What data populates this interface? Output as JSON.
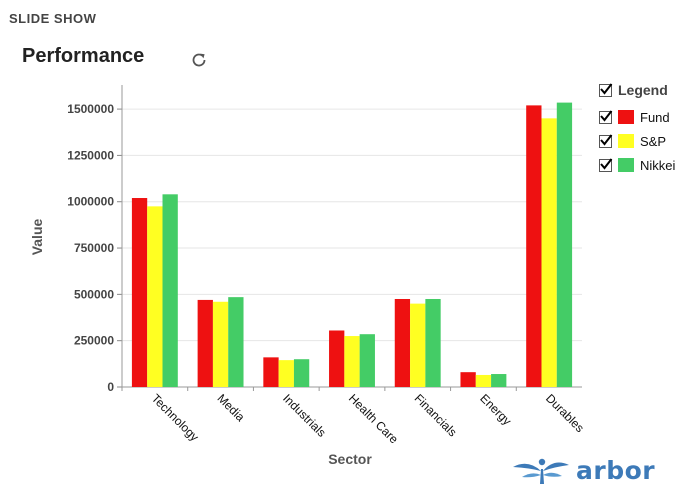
{
  "header": {
    "label": "SLIDE SHOW"
  },
  "panel": {
    "title": "Performance"
  },
  "legend": {
    "title": "Legend",
    "title_checked": true,
    "items": [
      {
        "name": "Fund",
        "color": "#ee1111",
        "checked": true
      },
      {
        "name": "S&P",
        "color": "#ffff22",
        "checked": true
      },
      {
        "name": "Nikkei",
        "color": "#44cc66",
        "checked": true
      }
    ]
  },
  "logo": {
    "text": "arbor",
    "icon": "arbor-tree-icon",
    "color": "#3d7ab8"
  },
  "icons": {
    "refresh": "refresh-icon",
    "checkbox": "checkmark-icon"
  },
  "chart_data": {
    "type": "bar",
    "xlabel": "Sector",
    "ylabel": "Value",
    "ylim": [
      0,
      1500000
    ],
    "yticks": [
      0,
      250000,
      500000,
      750000,
      1000000,
      1250000,
      1500000
    ],
    "grid": true,
    "legend_position": "right",
    "categories": [
      "Technology",
      "Media",
      "Industrials",
      "Health Care",
      "Financials",
      "Energy",
      "Durables"
    ],
    "series": [
      {
        "name": "Fund",
        "color": "#ee1111",
        "values": [
          1020000,
          470000,
          160000,
          305000,
          475000,
          80000,
          1520000
        ]
      },
      {
        "name": "S&P",
        "color": "#ffff22",
        "values": [
          975000,
          460000,
          145000,
          275000,
          450000,
          65000,
          1450000
        ]
      },
      {
        "name": "Nikkei",
        "color": "#44cc66",
        "values": [
          1040000,
          485000,
          150000,
          285000,
          475000,
          70000,
          1535000
        ]
      }
    ]
  }
}
